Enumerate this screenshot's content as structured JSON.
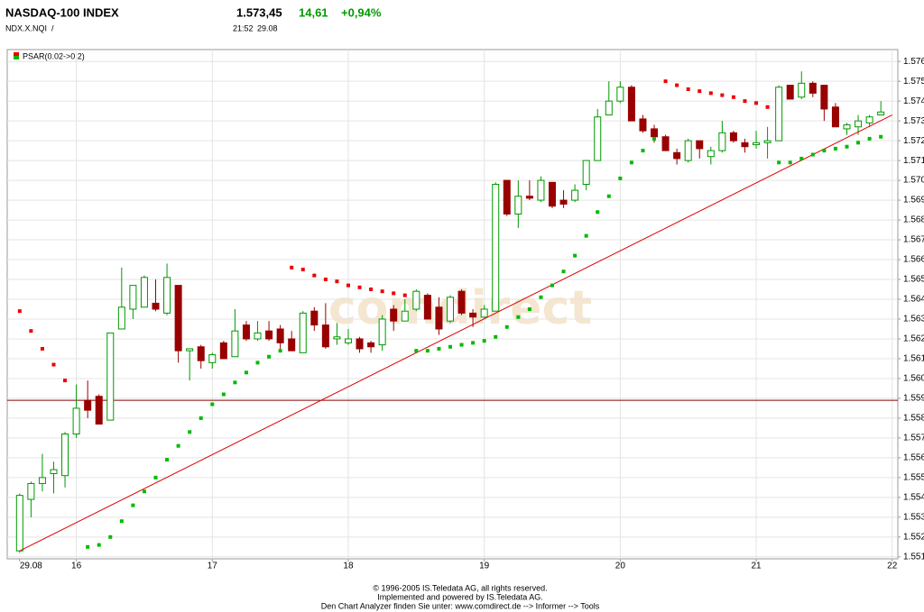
{
  "header": {
    "name": "NASDAQ-100 INDEX",
    "symbol": "NDX.X.NQI  /",
    "last": "1.573,45",
    "change": "14,61",
    "change_pct": "+0,94%",
    "time": "21:52",
    "date": "29.08"
  },
  "footer": [
    "© 1996-2005 IS.Teledata AG, all rights reserved.",
    "Implemented and powered by IS.Teledata AG.",
    "Den Chart Analyzer finden Sie unter: www.comdirect.de --> Informer --> Tools"
  ],
  "chart_data": {
    "type": "candlestick",
    "watermark": "comdirect",
    "open": [
      1551.3,
      1553.9,
      1554.7,
      1555.2,
      1555.1,
      1557.2,
      1558.9,
      1559.1,
      1557.9,
      1562.5,
      1563.5,
      1563.6,
      1563.8,
      1563.3,
      1564.7,
      1561.4,
      1561.6,
      1560.8,
      1561.8,
      1561.1,
      1562.7,
      1562.0,
      1562.4,
      1562.5,
      1562.0,
      1561.3,
      1563.4,
      1562.7,
      1562.0,
      1561.8,
      1562.0,
      1561.8,
      1561.7,
      1563.5,
      1562.9,
      1563.5,
      1564.2,
      1563.6,
      1562.9,
      1564.4,
      1563.3,
      1563.1,
      1563.4,
      1570.0,
      1568.3,
      1569.2,
      1569.0,
      1569.9,
      1569.0,
      1569.0,
      1569.8,
      1571.0,
      1573.3,
      1574.0,
      1574.7,
      1573.1,
      1572.6,
      1572.2,
      1571.4,
      1571.0,
      1572.0,
      1571.2,
      1571.5,
      1572.4,
      1571.9,
      1571.8,
      1571.9,
      1572.0,
      1574.8,
      1574.2,
      1574.9,
      1574.8,
      1573.7,
      1572.6,
      1572.7,
      1572.9,
      1573.3
    ],
    "high": [
      1554.2,
      1554.8,
      1556.2,
      1555.8,
      1557.3,
      1559.7,
      1559.9,
      1559.2,
      1562.3,
      1565.6,
      1564.7,
      1565.2,
      1565.0,
      1565.8,
      1564.7,
      1561.5,
      1561.7,
      1561.3,
      1561.9,
      1563.5,
      1562.9,
      1562.9,
      1562.9,
      1562.7,
      1562.4,
      1563.4,
      1563.6,
      1563.8,
      1562.8,
      1562.5,
      1562.1,
      1561.9,
      1563.2,
      1563.7,
      1564.0,
      1564.5,
      1564.3,
      1564.1,
      1564.2,
      1564.5,
      1563.5,
      1563.7,
      1569.9,
      1570.0,
      1570.0,
      1570.0,
      1570.2,
      1569.9,
      1569.5,
      1569.8,
      1571.0,
      1573.6,
      1575.0,
      1575.0,
      1574.8,
      1573.3,
      1572.8,
      1572.3,
      1571.6,
      1572.1,
      1572.0,
      1571.7,
      1573.0,
      1572.5,
      1572.1,
      1572.5,
      1572.7,
      1574.8,
      1574.8,
      1575.5,
      1575.0,
      1574.8,
      1573.9,
      1572.9,
      1573.3,
      1573.3,
      1574.0
    ],
    "low": [
      1551.2,
      1553.0,
      1554.3,
      1554.2,
      1554.5,
      1557.0,
      1558.0,
      1557.7,
      1557.9,
      1562.5,
      1563.0,
      1563.6,
      1563.4,
      1563.2,
      1560.8,
      1559.9,
      1560.5,
      1560.5,
      1561.0,
      1561.1,
      1561.9,
      1561.9,
      1561.9,
      1561.5,
      1561.4,
      1561.3,
      1562.4,
      1561.5,
      1561.7,
      1561.7,
      1561.3,
      1561.3,
      1561.4,
      1562.4,
      1562.9,
      1563.4,
      1563.0,
      1562.2,
      1562.8,
      1563.2,
      1562.6,
      1563.0,
      1563.4,
      1568.2,
      1567.6,
      1569.0,
      1568.9,
      1568.6,
      1568.6,
      1568.9,
      1569.5,
      1571.0,
      1573.3,
      1573.9,
      1573.0,
      1572.4,
      1571.9,
      1571.5,
      1570.8,
      1570.9,
      1571.1,
      1570.8,
      1571.4,
      1571.9,
      1571.4,
      1571.6,
      1571.1,
      1572.0,
      1574.1,
      1574.1,
      1574.2,
      1573.0,
      1572.7,
      1572.3,
      1572.3,
      1572.7,
      1573.3
    ],
    "close": [
      1554.1,
      1554.7,
      1555.0,
      1555.4,
      1557.2,
      1558.5,
      1558.4,
      1557.7,
      1562.3,
      1563.6,
      1564.7,
      1565.1,
      1563.5,
      1565.1,
      1561.4,
      1561.5,
      1560.9,
      1561.2,
      1561.0,
      1562.4,
      1562.0,
      1562.3,
      1562.0,
      1561.8,
      1561.4,
      1563.3,
      1562.7,
      1561.6,
      1562.1,
      1562.0,
      1561.5,
      1561.6,
      1563.0,
      1562.9,
      1563.4,
      1564.4,
      1563.0,
      1562.5,
      1564.1,
      1563.3,
      1563.1,
      1563.5,
      1569.8,
      1568.3,
      1569.2,
      1569.1,
      1570.0,
      1568.7,
      1568.8,
      1569.5,
      1571.0,
      1573.2,
      1574.0,
      1574.7,
      1573.0,
      1572.5,
      1572.2,
      1571.5,
      1571.1,
      1572.0,
      1571.6,
      1571.5,
      1572.4,
      1572.0,
      1571.7,
      1571.9,
      1572.0,
      1574.7,
      1574.1,
      1574.9,
      1574.4,
      1573.6,
      1572.7,
      1572.8,
      1573.0,
      1573.2,
      1573.45
    ],
    "up_color": "#009900",
    "down_color": "#990000",
    "psar": {
      "name": "PSAR(0.02->0.2)",
      "above_color": "#ee0000",
      "below_color": "#00bb00",
      "values": [
        1563.4,
        1562.4,
        1561.5,
        1560.7,
        1559.9,
        null,
        1551.5,
        1551.6,
        1552.0,
        1552.8,
        1553.6,
        1554.3,
        1555.0,
        1555.9,
        1556.6,
        1557.3,
        1558.0,
        1558.7,
        1559.2,
        1559.8,
        1560.3,
        1560.8,
        1561.1,
        1561.4,
        1565.6,
        1565.5,
        1565.2,
        1565.0,
        1564.9,
        1564.7,
        1564.6,
        1564.5,
        1564.4,
        1564.3,
        1564.2,
        1561.4,
        1561.4,
        1561.5,
        1561.6,
        1561.7,
        1561.8,
        1561.9,
        1562.1,
        1562.6,
        1563.1,
        1563.5,
        1564.1,
        1564.7,
        1565.4,
        1566.2,
        1567.2,
        1568.4,
        1569.2,
        1570.1,
        1570.9,
        1571.5,
        1572.1,
        1575.0,
        1574.8,
        1574.6,
        1574.5,
        1574.4,
        1574.3,
        1574.2,
        1574.0,
        1573.9,
        1573.7,
        1570.9,
        1570.9,
        1571.1,
        1571.3,
        1571.5,
        1571.6,
        1571.7,
        1571.9,
        1572.1,
        1572.2
      ]
    },
    "trendline": {
      "x": [
        0,
        77
      ],
      "y": [
        1551.3,
        1573.3
      ],
      "color": "#dd0000"
    },
    "hline": {
      "value": 1558.9,
      "color": "#880000"
    },
    "xlim": [
      -1.1,
      77.5
    ],
    "xticks": [
      {
        "value": 0,
        "label": "29.08"
      },
      {
        "value": 5,
        "label": "16"
      },
      {
        "value": 17,
        "label": "17"
      },
      {
        "value": 29,
        "label": "18"
      },
      {
        "value": 41,
        "label": "19"
      },
      {
        "value": 53,
        "label": "20"
      },
      {
        "value": 65,
        "label": "21"
      },
      {
        "value": 77,
        "label": "22"
      }
    ],
    "ylim": [
      1550.9,
      1576.6
    ],
    "yticks": [
      {
        "value": 1551,
        "label": "1.551"
      },
      {
        "value": 1552,
        "label": "1.552"
      },
      {
        "value": 1553,
        "label": "1.553"
      },
      {
        "value": 1554,
        "label": "1.554"
      },
      {
        "value": 1555,
        "label": "1.555"
      },
      {
        "value": 1556,
        "label": "1.556"
      },
      {
        "value": 1557,
        "label": "1.557"
      },
      {
        "value": 1558,
        "label": "1.558"
      },
      {
        "value": 1559,
        "label": "1.559"
      },
      {
        "value": 1560,
        "label": "1.560"
      },
      {
        "value": 1561,
        "label": "1.561"
      },
      {
        "value": 1562,
        "label": "1.562"
      },
      {
        "value": 1563,
        "label": "1.563"
      },
      {
        "value": 1564,
        "label": "1.564"
      },
      {
        "value": 1565,
        "label": "1.565"
      },
      {
        "value": 1566,
        "label": "1.566"
      },
      {
        "value": 1567,
        "label": "1.567"
      },
      {
        "value": 1568,
        "label": "1.568"
      },
      {
        "value": 1569,
        "label": "1.569"
      },
      {
        "value": 1570,
        "label": "1.570"
      },
      {
        "value": 1571,
        "label": "1.571"
      },
      {
        "value": 1572,
        "label": "1.572"
      },
      {
        "value": 1573,
        "label": "1.573"
      },
      {
        "value": 1574,
        "label": "1.574"
      },
      {
        "value": 1575,
        "label": "1.575"
      },
      {
        "value": 1576,
        "label": "1.576"
      }
    ],
    "grid": true
  }
}
